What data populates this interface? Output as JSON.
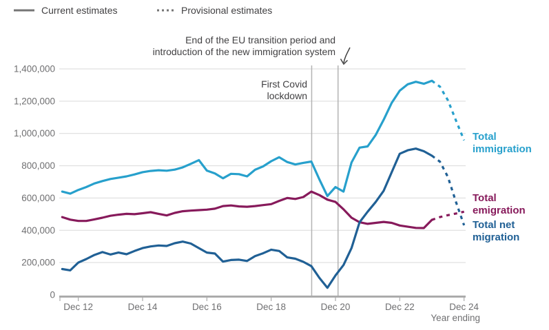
{
  "legend": {
    "current_label": "Current estimates",
    "provisional_label": "Provisional estimates"
  },
  "annotations": {
    "eu_line1": "End of the EU transition period and",
    "eu_line2": "introduction of the new immigration system",
    "covid_line1": "First Covid",
    "covid_line2": "lockdown",
    "covid_t": 8.26,
    "eu_t": 9.08
  },
  "series_labels": {
    "immigration": {
      "line1": "Total",
      "line2": "immigration"
    },
    "emigration": {
      "line1": "Total",
      "line2": "emigration"
    },
    "net": {
      "line1": "Total net",
      "line2": "migration"
    }
  },
  "axis": {
    "x_axis_label": "Year ending",
    "y_ticks": [
      {
        "value": 0,
        "label": "0"
      },
      {
        "value": 200,
        "label": "200,000"
      },
      {
        "value": 400,
        "label": "400,000"
      },
      {
        "value": 600,
        "label": "600,000"
      },
      {
        "value": 800,
        "label": "800,000"
      },
      {
        "value": 1000,
        "label": "1,000,000"
      },
      {
        "value": 1200,
        "label": "1,200,000"
      },
      {
        "value": 1400,
        "label": "1,400,000"
      }
    ],
    "x_ticks": [
      {
        "t": 1,
        "label": "Dec 12"
      },
      {
        "t": 3,
        "label": "Dec 14"
      },
      {
        "t": 5,
        "label": "Dec 16"
      },
      {
        "t": 7,
        "label": "Dec 18"
      },
      {
        "t": 9,
        "label": "Dec 20"
      },
      {
        "t": 11,
        "label": "Dec 22"
      },
      {
        "t": 13,
        "label": "Dec 24"
      }
    ]
  },
  "colors": {
    "immigration": "#27A0CC",
    "emigration": "#871A5B",
    "net": "#206095",
    "gridline": "#D9D9D9",
    "axis_line": "#ABABAB",
    "annotation_line": "#B3B3B3",
    "tick_label": "#6F6F71",
    "annotation_text": "#414042",
    "legend_line": "#757575"
  },
  "chart_data": {
    "type": "line",
    "title": "",
    "xlabel": "Year ending",
    "ylabel": "",
    "ylim": [
      0,
      1400000
    ],
    "values_unit": "thousands of people, year-ending quarterly estimates",
    "x_unit": "years since Dec 2011 (1 = Dec 2012, 13 = Dec 2024)",
    "legend_position": "top-left",
    "grid": "horizontal",
    "series": [
      {
        "name": "Total immigration",
        "color": "#27A0CC",
        "current": [
          [
            0.5,
            640
          ],
          [
            0.75,
            627
          ],
          [
            1,
            650
          ],
          [
            1.25,
            668
          ],
          [
            1.5,
            690
          ],
          [
            1.75,
            705
          ],
          [
            2,
            718
          ],
          [
            2.25,
            726
          ],
          [
            2.5,
            734
          ],
          [
            2.75,
            746
          ],
          [
            3,
            760
          ],
          [
            3.25,
            768
          ],
          [
            3.5,
            772
          ],
          [
            3.75,
            769
          ],
          [
            4,
            776
          ],
          [
            4.25,
            790
          ],
          [
            4.5,
            812
          ],
          [
            4.75,
            835
          ],
          [
            5,
            770
          ],
          [
            5.25,
            752
          ],
          [
            5.5,
            722
          ],
          [
            5.75,
            750
          ],
          [
            6,
            748
          ],
          [
            6.25,
            734
          ],
          [
            6.5,
            775
          ],
          [
            6.75,
            796
          ],
          [
            7,
            828
          ],
          [
            7.25,
            853
          ],
          [
            7.5,
            823
          ],
          [
            7.75,
            808
          ],
          [
            8,
            818
          ],
          [
            8.25,
            826
          ],
          [
            8.5,
            715
          ],
          [
            8.75,
            612
          ],
          [
            9,
            668
          ],
          [
            9.25,
            640
          ],
          [
            9.5,
            820
          ],
          [
            9.75,
            912
          ],
          [
            10,
            920
          ],
          [
            10.25,
            990
          ],
          [
            10.5,
            1085
          ],
          [
            10.75,
            1190
          ],
          [
            11,
            1265
          ],
          [
            11.25,
            1305
          ],
          [
            11.5,
            1320
          ],
          [
            11.75,
            1308
          ],
          [
            12,
            1326
          ]
        ],
        "provisional": [
          [
            12,
            1326
          ],
          [
            12.25,
            1290
          ],
          [
            12.5,
            1205
          ],
          [
            12.75,
            1080
          ],
          [
            13,
            958
          ]
        ]
      },
      {
        "name": "Total emigration",
        "color": "#871A5B",
        "current": [
          [
            0.5,
            482
          ],
          [
            0.75,
            466
          ],
          [
            1,
            458
          ],
          [
            1.25,
            458
          ],
          [
            1.5,
            468
          ],
          [
            1.75,
            478
          ],
          [
            2,
            490
          ],
          [
            2.25,
            497
          ],
          [
            2.5,
            502
          ],
          [
            2.75,
            500
          ],
          [
            3,
            506
          ],
          [
            3.25,
            512
          ],
          [
            3.5,
            502
          ],
          [
            3.75,
            492
          ],
          [
            4,
            508
          ],
          [
            4.25,
            518
          ],
          [
            4.5,
            522
          ],
          [
            4.75,
            525
          ],
          [
            5,
            528
          ],
          [
            5.25,
            534
          ],
          [
            5.5,
            550
          ],
          [
            5.75,
            554
          ],
          [
            6,
            548
          ],
          [
            6.25,
            546
          ],
          [
            6.5,
            550
          ],
          [
            6.75,
            556
          ],
          [
            7,
            562
          ],
          [
            7.25,
            582
          ],
          [
            7.5,
            600
          ],
          [
            7.75,
            594
          ],
          [
            8,
            606
          ],
          [
            8.25,
            640
          ],
          [
            8.5,
            618
          ],
          [
            8.75,
            590
          ],
          [
            9,
            576
          ],
          [
            9.25,
            530
          ],
          [
            9.5,
            478
          ],
          [
            9.75,
            450
          ],
          [
            10,
            440
          ],
          [
            10.25,
            446
          ],
          [
            10.5,
            452
          ],
          [
            10.75,
            446
          ],
          [
            11,
            430
          ],
          [
            11.25,
            422
          ],
          [
            11.5,
            415
          ],
          [
            11.75,
            414
          ],
          [
            12,
            465
          ]
        ],
        "provisional": [
          [
            12,
            465
          ],
          [
            12.25,
            482
          ],
          [
            12.5,
            494
          ],
          [
            12.75,
            504
          ],
          [
            13,
            515
          ]
        ]
      },
      {
        "name": "Total net migration",
        "color": "#206095",
        "current": [
          [
            0.5,
            160
          ],
          [
            0.75,
            152
          ],
          [
            1,
            200
          ],
          [
            1.25,
            222
          ],
          [
            1.5,
            247
          ],
          [
            1.75,
            265
          ],
          [
            2,
            250
          ],
          [
            2.25,
            262
          ],
          [
            2.5,
            252
          ],
          [
            2.75,
            272
          ],
          [
            3,
            290
          ],
          [
            3.25,
            300
          ],
          [
            3.5,
            306
          ],
          [
            3.75,
            303
          ],
          [
            4,
            320
          ],
          [
            4.25,
            330
          ],
          [
            4.5,
            318
          ],
          [
            4.75,
            290
          ],
          [
            5,
            262
          ],
          [
            5.25,
            256
          ],
          [
            5.5,
            206
          ],
          [
            5.75,
            216
          ],
          [
            6,
            218
          ],
          [
            6.25,
            210
          ],
          [
            6.5,
            240
          ],
          [
            6.75,
            258
          ],
          [
            7,
            280
          ],
          [
            7.25,
            272
          ],
          [
            7.5,
            232
          ],
          [
            7.75,
            224
          ],
          [
            8,
            205
          ],
          [
            8.25,
            178
          ],
          [
            8.5,
            105
          ],
          [
            8.75,
            44
          ],
          [
            9,
            120
          ],
          [
            9.25,
            185
          ],
          [
            9.5,
            290
          ],
          [
            9.75,
            450
          ],
          [
            10,
            515
          ],
          [
            10.25,
            575
          ],
          [
            10.5,
            645
          ],
          [
            10.75,
            760
          ],
          [
            11,
            874
          ],
          [
            11.25,
            896
          ],
          [
            11.5,
            906
          ],
          [
            11.75,
            890
          ],
          [
            12,
            862
          ]
        ],
        "provisional": [
          [
            12,
            862
          ],
          [
            12.25,
            825
          ],
          [
            12.5,
            730
          ],
          [
            12.75,
            575
          ],
          [
            13,
            431
          ]
        ]
      }
    ]
  }
}
